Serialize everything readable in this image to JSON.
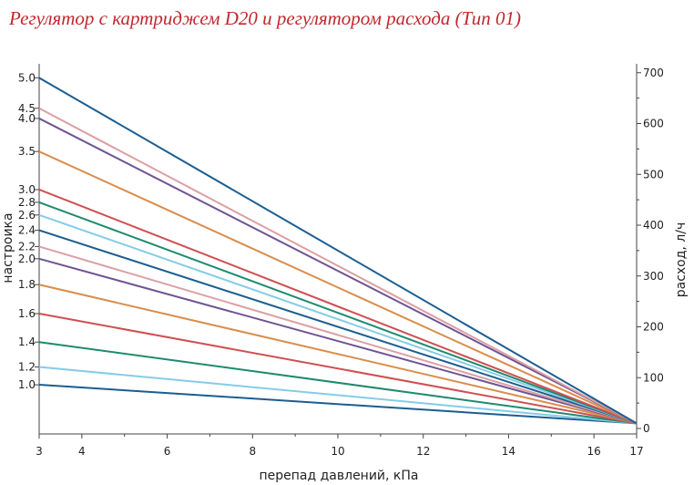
{
  "title": "Регулятор с картриджем D20 и регулятором расхода (Тип 01)",
  "chart_data": {
    "type": "line",
    "xlabel": "перепад давлений, кПа",
    "ylabel_left": "настроика",
    "ylabel_right": "расход, л/ч",
    "xlim": [
      3,
      17
    ],
    "ylim_right": [
      0,
      720
    ],
    "x_tick_labels": [
      "3",
      "4",
      "6",
      "8",
      "10",
      "12",
      "14",
      "16",
      "17"
    ],
    "right_tick_labels": [
      "0",
      "100",
      "200",
      "300",
      "400",
      "500",
      "600",
      "700"
    ],
    "grid": false,
    "series": [
      {
        "name": "1.0",
        "color": "#1b5d91",
        "x": [
          3,
          17
        ],
        "y": [
          86,
          10
        ]
      },
      {
        "name": "1.2",
        "color": "#84cce8",
        "x": [
          3,
          17
        ],
        "y": [
          121,
          10
        ]
      },
      {
        "name": "1.4",
        "color": "#1e8a6e",
        "x": [
          3,
          17
        ],
        "y": [
          170,
          10
        ]
      },
      {
        "name": "1.6",
        "color": "#cf4f52",
        "x": [
          3,
          17
        ],
        "y": [
          226,
          10
        ]
      },
      {
        "name": "1.8",
        "color": "#d98d4b",
        "x": [
          3,
          17
        ],
        "y": [
          283,
          10
        ]
      },
      {
        "name": "2.0",
        "color": "#6e5493",
        "x": [
          3,
          17
        ],
        "y": [
          334,
          10
        ]
      },
      {
        "name": "2.2",
        "color": "#dba0a4",
        "x": [
          3,
          17
        ],
        "y": [
          358,
          10
        ]
      },
      {
        "name": "2.4",
        "color": "#1b5d91",
        "x": [
          3,
          17
        ],
        "y": [
          390,
          10
        ]
      },
      {
        "name": "2.6",
        "color": "#84cce8",
        "x": [
          3,
          17
        ],
        "y": [
          420,
          10
        ]
      },
      {
        "name": "2.8",
        "color": "#1e8a6e",
        "x": [
          3,
          17
        ],
        "y": [
          445,
          10
        ]
      },
      {
        "name": "3.0",
        "color": "#cf4f52",
        "x": [
          3,
          17
        ],
        "y": [
          470,
          10
        ]
      },
      {
        "name": "3.5",
        "color": "#d98d4b",
        "x": [
          3,
          17
        ],
        "y": [
          545,
          10
        ]
      },
      {
        "name": "4.0",
        "color": "#6e5493",
        "x": [
          3,
          17
        ],
        "y": [
          610,
          10
        ]
      },
      {
        "name": "4.5",
        "color": "#dba0a4",
        "x": [
          3,
          17
        ],
        "y": [
          630,
          10
        ]
      },
      {
        "name": "5.0",
        "color": "#1b5d91",
        "x": [
          3,
          17
        ],
        "y": [
          690,
          10
        ]
      }
    ]
  }
}
